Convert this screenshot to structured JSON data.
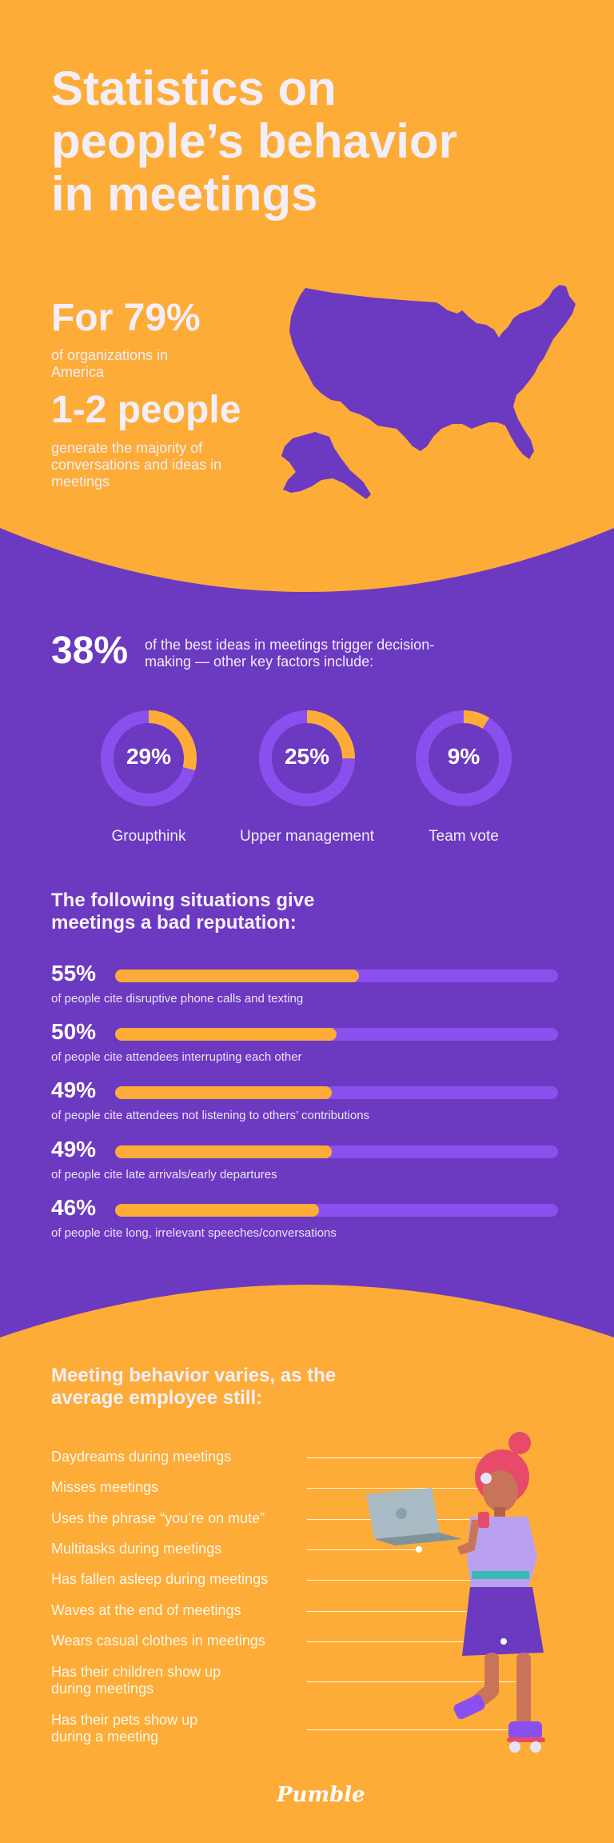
{
  "title": "Statistics on people’s behavior in meetings",
  "intro": {
    "stat1": "For 79%",
    "stat1_text": "of organizations in America",
    "stat2": "1-2 people",
    "stat2_text": "generate the majority of conversations and ideas in meetings",
    "map_icon": "usa-map"
  },
  "decision": {
    "stat": "38%",
    "text": "of the best ideas in meetings trigger decision-making — other key factors include:",
    "factors": [
      {
        "value": "29%",
        "label": "Groupthink",
        "fraction": 0.29
      },
      {
        "value": "25%",
        "label": "Upper management",
        "fraction": 0.25
      },
      {
        "value": "9%",
        "label": "Team vote",
        "fraction": 0.09
      }
    ]
  },
  "reputation": {
    "heading": "The following situations give meetings a bad reputation:",
    "items": [
      {
        "value": "55%",
        "fraction": 0.55,
        "text": "of people cite disruptive phone calls and texting"
      },
      {
        "value": "50%",
        "fraction": 0.5,
        "text": "of people cite attendees interrupting each other"
      },
      {
        "value": "49%",
        "fraction": 0.49,
        "text": "of people cite attendees not listening to others’ contributions"
      },
      {
        "value": "49%",
        "fraction": 0.49,
        "text": "of people cite late arrivals/early departures"
      },
      {
        "value": "46%",
        "fraction": 0.46,
        "text": "of people cite long, irrelevant speeches/conversations"
      }
    ]
  },
  "behavior": {
    "heading": "Meeting behavior varies, as the average employee still:",
    "items": [
      "Daydreams during meetings",
      "Misses meetings",
      "Uses the phrase “you’re on mute”",
      "Multitasks during meetings",
      "Has fallen asleep during meetings",
      "Waves at the end of meetings",
      "Wears casual clothes in meetings",
      "Has their children show up during meetings",
      "Has their pets show up during a meeting"
    ]
  },
  "logo": "Pumble",
  "colors": {
    "orange": "#FDAC38",
    "purple": "#6C39C1",
    "light_purple": "#8A50EE",
    "text_light": "#F4EEF9"
  }
}
